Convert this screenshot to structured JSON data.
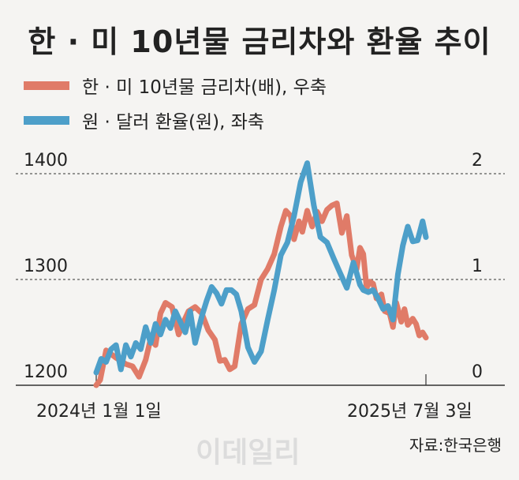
{
  "chart_data": {
    "type": "line",
    "title": "한 · 미 10년물 금리차와 환율 추이",
    "source": "자료:한국은행",
    "watermark": "이데일리",
    "x_labels": {
      "start": "2024년 1월 1일",
      "end": "2025년 7월 3일"
    },
    "left_axis": {
      "ticks": [
        "1200",
        "1300",
        "1400"
      ],
      "values": [
        1200,
        1300,
        1400
      ],
      "ylim": [
        1200,
        1400
      ]
    },
    "right_axis": {
      "ticks": [
        "0",
        "1",
        "2"
      ],
      "values": [
        0,
        1,
        2
      ],
      "ylim": [
        0,
        2
      ]
    },
    "gridlines": [
      1300,
      1400
    ],
    "series": [
      {
        "name": "한 · 미 10년물 금리차(배), 우축",
        "color": "#e07b68",
        "axis": "right",
        "x": [
          0,
          0.012,
          0.03,
          0.06,
          0.09,
          0.11,
          0.13,
          0.15,
          0.165,
          0.18,
          0.195,
          0.21,
          0.23,
          0.25,
          0.265,
          0.28,
          0.3,
          0.32,
          0.34,
          0.36,
          0.375,
          0.39,
          0.405,
          0.42,
          0.44,
          0.46,
          0.48,
          0.5,
          0.52,
          0.54,
          0.56,
          0.575,
          0.59,
          0.6,
          0.615,
          0.625,
          0.64,
          0.655,
          0.67,
          0.685,
          0.7,
          0.715,
          0.73,
          0.745,
          0.76,
          0.775,
          0.79,
          0.8,
          0.81,
          0.82,
          0.83,
          0.84,
          0.85,
          0.865,
          0.875,
          0.89,
          0.9,
          0.91,
          0.925,
          0.935,
          0.945,
          0.96,
          0.97,
          0.98,
          0.99,
          1.0
        ],
        "values": [
          0.0,
          0.05,
          0.33,
          0.26,
          0.2,
          0.18,
          0.08,
          0.24,
          0.44,
          0.38,
          0.68,
          0.78,
          0.74,
          0.48,
          0.6,
          0.7,
          0.74,
          0.68,
          0.52,
          0.43,
          0.23,
          0.24,
          0.15,
          0.18,
          0.58,
          0.72,
          0.76,
          1.0,
          1.1,
          1.24,
          1.5,
          1.65,
          1.6,
          1.38,
          1.55,
          1.45,
          1.65,
          1.5,
          1.64,
          1.55,
          1.66,
          1.7,
          1.72,
          1.44,
          1.6,
          1.23,
          1.1,
          1.3,
          1.24,
          0.92,
          0.98,
          0.96,
          0.82,
          0.86,
          0.7,
          0.68,
          0.55,
          0.78,
          0.6,
          0.72,
          0.57,
          0.63,
          0.58,
          0.47,
          0.5,
          0.45
        ]
      },
      {
        "name": "원 · 달러 환율(원), 좌축",
        "color": "#4d9fc9",
        "axis": "left",
        "x": [
          0,
          0.015,
          0.03,
          0.045,
          0.06,
          0.075,
          0.09,
          0.105,
          0.12,
          0.135,
          0.15,
          0.165,
          0.18,
          0.195,
          0.21,
          0.225,
          0.24,
          0.255,
          0.27,
          0.285,
          0.3,
          0.32,
          0.335,
          0.35,
          0.365,
          0.38,
          0.395,
          0.41,
          0.425,
          0.44,
          0.46,
          0.48,
          0.5,
          0.52,
          0.54,
          0.56,
          0.58,
          0.6,
          0.62,
          0.64,
          0.66,
          0.68,
          0.7,
          0.72,
          0.74,
          0.76,
          0.78,
          0.79,
          0.8,
          0.81,
          0.825,
          0.84,
          0.855,
          0.87,
          0.885,
          0.9,
          0.915,
          0.93,
          0.945,
          0.96,
          0.975,
          0.99,
          1.0
        ],
        "values": [
          1212,
          1225,
          1222,
          1234,
          1238,
          1215,
          1238,
          1227,
          1240,
          1234,
          1255,
          1240,
          1258,
          1248,
          1262,
          1254,
          1270,
          1260,
          1250,
          1270,
          1240,
          1265,
          1280,
          1293,
          1287,
          1277,
          1290,
          1290,
          1286,
          1270,
          1236,
          1222,
          1232,
          1262,
          1290,
          1323,
          1335,
          1360,
          1392,
          1410,
          1370,
          1340,
          1335,
          1320,
          1306,
          1292,
          1316,
          1306,
          1295,
          1290,
          1288,
          1290,
          1282,
          1272,
          1275,
          1262,
          1305,
          1332,
          1350,
          1336,
          1337,
          1355,
          1340
        ]
      }
    ]
  }
}
